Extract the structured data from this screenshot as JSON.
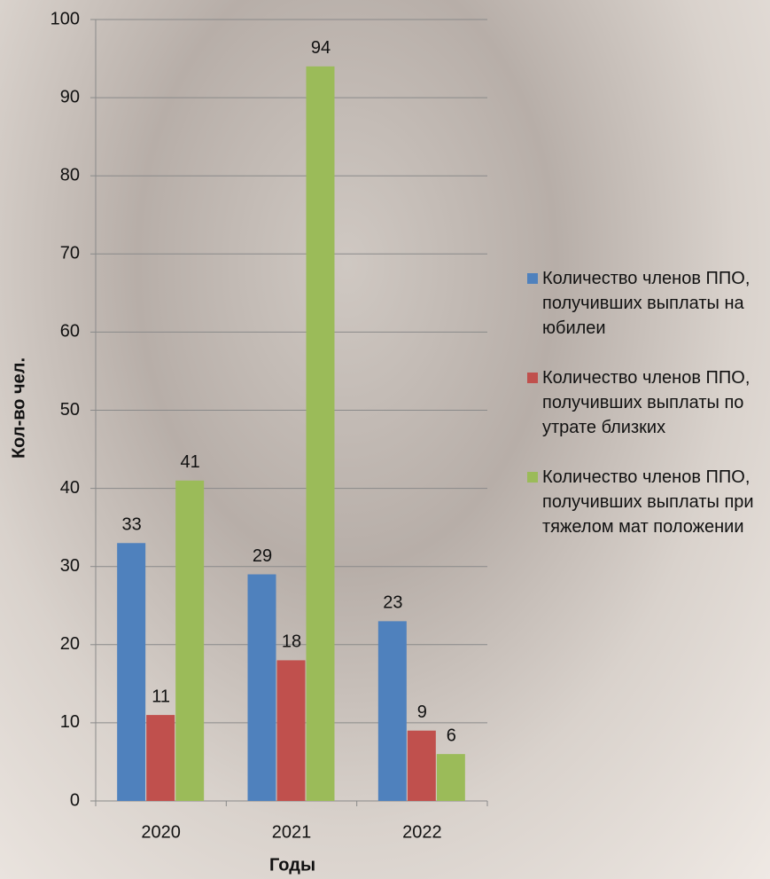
{
  "chart_data": {
    "type": "bar",
    "x_label": "Годы",
    "y_label": "Кол-во чел.",
    "categories": [
      "2020",
      "2021",
      "2022"
    ],
    "series": [
      {
        "name": "Количество членов ППО, получивших выплаты  на юбилеи",
        "color": "#4f81bd",
        "values": [
          33,
          29,
          23
        ]
      },
      {
        "name": "Количество членов ППО, получивших выплаты по утрате близких",
        "color": "#c0504d",
        "values": [
          11,
          18,
          9
        ]
      },
      {
        "name": "Количество членов ППО, получивших выплаты при тяжелом мат положении",
        "color": "#9bbb59",
        "values": [
          41,
          94,
          6
        ]
      }
    ],
    "ylim": [
      0,
      100
    ],
    "yticks": [
      0,
      10,
      20,
      30,
      40,
      50,
      60,
      70,
      80,
      90,
      100
    ],
    "grid": true,
    "legend": "right"
  }
}
